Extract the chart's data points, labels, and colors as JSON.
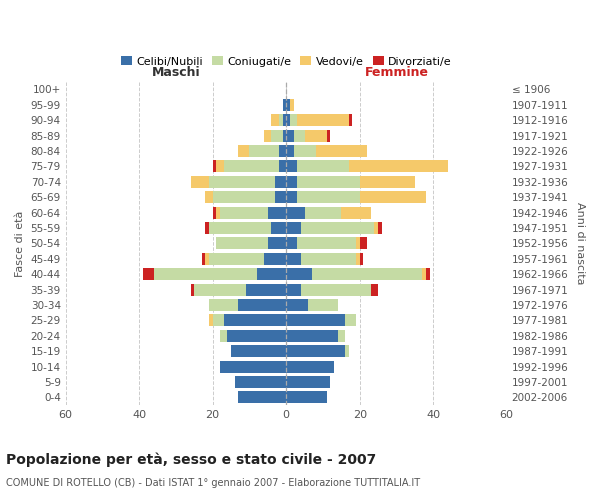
{
  "age_groups": [
    "0-4",
    "5-9",
    "10-14",
    "15-19",
    "20-24",
    "25-29",
    "30-34",
    "35-39",
    "40-44",
    "45-49",
    "50-54",
    "55-59",
    "60-64",
    "65-69",
    "70-74",
    "75-79",
    "80-84",
    "85-89",
    "90-94",
    "95-99",
    "100+"
  ],
  "birth_years": [
    "2002-2006",
    "1997-2001",
    "1992-1996",
    "1987-1991",
    "1982-1986",
    "1977-1981",
    "1972-1976",
    "1967-1971",
    "1962-1966",
    "1957-1961",
    "1952-1956",
    "1947-1951",
    "1942-1946",
    "1937-1941",
    "1932-1936",
    "1927-1931",
    "1922-1926",
    "1917-1921",
    "1912-1916",
    "1907-1911",
    "≤ 1906"
  ],
  "males": {
    "celibi": [
      13,
      14,
      18,
      15,
      16,
      17,
      13,
      11,
      8,
      6,
      5,
      4,
      5,
      3,
      3,
      2,
      2,
      1,
      1,
      1,
      0
    ],
    "coniugati": [
      0,
      0,
      0,
      0,
      2,
      3,
      8,
      14,
      28,
      15,
      14,
      17,
      13,
      17,
      18,
      15,
      8,
      3,
      1,
      0,
      0
    ],
    "vedovi": [
      0,
      0,
      0,
      0,
      0,
      1,
      0,
      0,
      0,
      1,
      0,
      0,
      1,
      2,
      5,
      2,
      3,
      2,
      2,
      0,
      0
    ],
    "divorziati": [
      0,
      0,
      0,
      0,
      0,
      0,
      0,
      1,
      3,
      1,
      0,
      1,
      1,
      0,
      0,
      1,
      0,
      0,
      0,
      0,
      0
    ]
  },
  "females": {
    "nubili": [
      11,
      12,
      13,
      16,
      14,
      16,
      6,
      4,
      7,
      4,
      3,
      4,
      5,
      3,
      3,
      3,
      2,
      2,
      1,
      1,
      0
    ],
    "coniugate": [
      0,
      0,
      0,
      1,
      2,
      3,
      8,
      19,
      30,
      15,
      16,
      20,
      10,
      17,
      17,
      14,
      6,
      3,
      2,
      0,
      0
    ],
    "vedove": [
      0,
      0,
      0,
      0,
      0,
      0,
      0,
      0,
      1,
      1,
      1,
      1,
      8,
      18,
      15,
      27,
      14,
      6,
      14,
      1,
      0
    ],
    "divorziate": [
      0,
      0,
      0,
      0,
      0,
      0,
      0,
      2,
      1,
      1,
      2,
      1,
      0,
      0,
      0,
      0,
      0,
      1,
      1,
      0,
      0
    ]
  },
  "colors": {
    "celibi": "#3a6fa8",
    "coniugati": "#c5dba4",
    "vedovi": "#f5c96a",
    "divorziati": "#cc2222"
  },
  "title": "Popolazione per età, sesso e stato civile - 2007",
  "subtitle": "COMUNE DI ROTELLO (CB) - Dati ISTAT 1° gennaio 2007 - Elaborazione TUTTITALIA.IT",
  "xlabel_left": "Maschi",
  "xlabel_right": "Femmine",
  "ylabel_left": "Fasce di età",
  "ylabel_right": "Anni di nascita",
  "xlim": 60,
  "legend_labels": [
    "Celibi/Nubili",
    "Coniugati/e",
    "Vedovi/e",
    "Divorziati/e"
  ],
  "background_color": "#ffffff",
  "femmine_color": "#cc2222",
  "maschi_color": "#333333"
}
